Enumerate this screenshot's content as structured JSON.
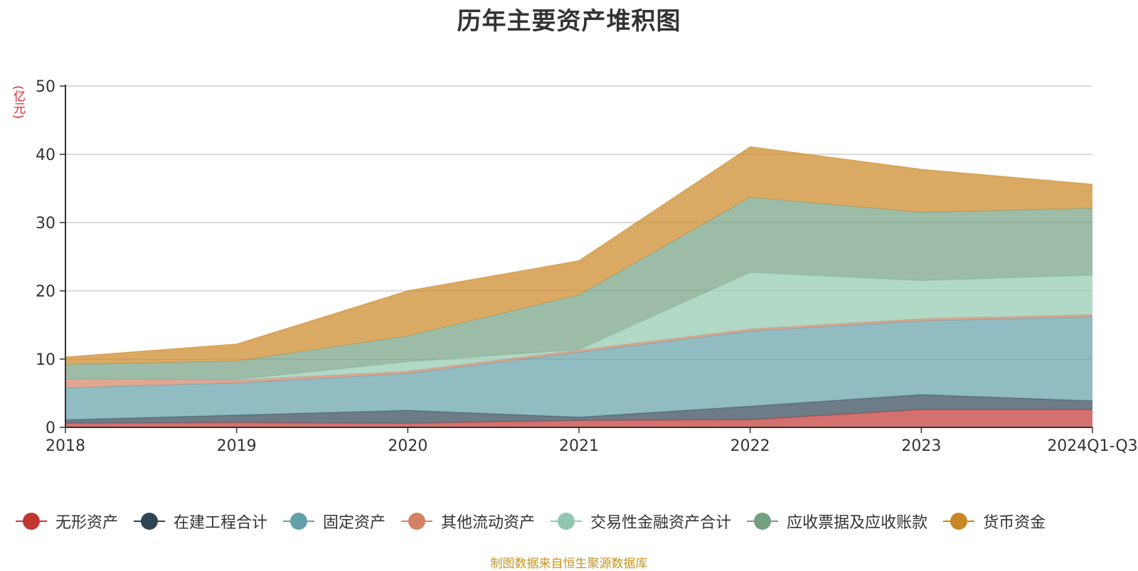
{
  "chart_data": {
    "type": "area",
    "stacked": true,
    "title": "历年主要资产堆积图",
    "unit_label": "(亿元)",
    "categories": [
      "2018",
      "2019",
      "2020",
      "2021",
      "2022",
      "2023",
      "2024Q1-Q3"
    ],
    "ylim": [
      0,
      50
    ],
    "yticks": [
      0,
      10,
      20,
      30,
      40,
      50
    ],
    "grid": true,
    "legend_position": "bottom",
    "series": [
      {
        "name": "无形资产",
        "color": "#c23531",
        "values": [
          0.6,
          0.7,
          0.6,
          1.0,
          1.1,
          2.6,
          2.6
        ]
      },
      {
        "name": "在建工程合计",
        "color": "#2f4554",
        "values": [
          0.5,
          1.1,
          1.9,
          0.5,
          2.0,
          2.2,
          1.3
        ]
      },
      {
        "name": "固定资产",
        "color": "#61a0a8",
        "values": [
          4.7,
          4.7,
          5.4,
          9.5,
          11.0,
          10.8,
          12.3
        ]
      },
      {
        "name": "其他流动资产",
        "color": "#d48265",
        "values": [
          1.3,
          0.4,
          0.3,
          0.3,
          0.3,
          0.3,
          0.3
        ]
      },
      {
        "name": "交易性金融资产合计",
        "color": "#91c7ae",
        "values": [
          0.0,
          0.1,
          1.4,
          0.1,
          8.3,
          5.6,
          5.8
        ]
      },
      {
        "name": "应收票据及应收账款",
        "color": "#749f83",
        "values": [
          2.1,
          2.7,
          3.8,
          8.0,
          11.0,
          10.0,
          9.8
        ]
      },
      {
        "name": "货币资金",
        "color": "#ca8622",
        "values": [
          1.1,
          2.5,
          6.6,
          5.0,
          7.4,
          6.3,
          3.5
        ]
      }
    ]
  },
  "footer": {
    "source_text": "制图数据来自恒生聚源数据库"
  }
}
